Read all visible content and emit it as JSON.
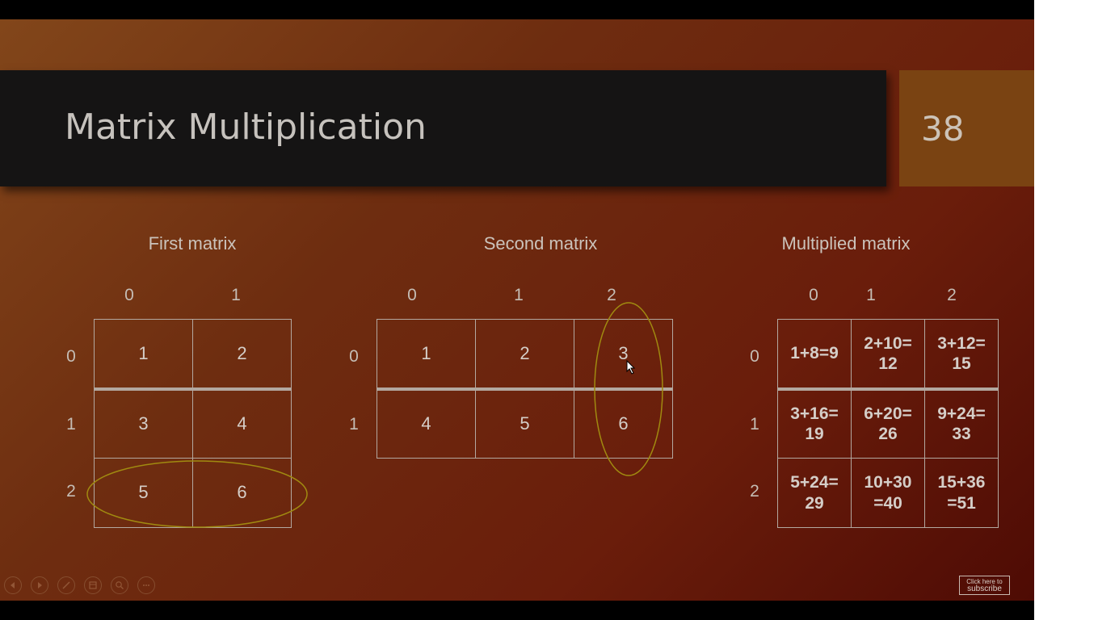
{
  "slide": {
    "title": "Matrix Multiplication",
    "number": "38"
  },
  "first_matrix": {
    "title": "First matrix",
    "col_labels": [
      "0",
      "1"
    ],
    "row_labels": [
      "0",
      "1",
      "2"
    ],
    "cells": [
      [
        "1",
        "2"
      ],
      [
        "3",
        "4"
      ],
      [
        "5",
        "6"
      ]
    ]
  },
  "second_matrix": {
    "title": "Second matrix",
    "col_labels": [
      "0",
      "1",
      "2"
    ],
    "row_labels": [
      "0",
      "1"
    ],
    "cells": [
      [
        "1",
        "2",
        "3"
      ],
      [
        "4",
        "5",
        "6"
      ]
    ]
  },
  "multiplied_matrix": {
    "title": "Multiplied matrix",
    "col_labels": [
      "0",
      "1",
      "2"
    ],
    "row_labels": [
      "0",
      "1",
      "2"
    ],
    "cells": [
      [
        [
          "1+8=9"
        ],
        [
          "2+10=",
          "12"
        ],
        [
          "3+12=",
          "15"
        ]
      ],
      [
        [
          "3+16=",
          "19"
        ],
        [
          "6+20=",
          "26"
        ],
        [
          "9+24=",
          "33"
        ]
      ],
      [
        [
          "5+24=",
          "29"
        ],
        [
          "10+30",
          "=40"
        ],
        [
          "15+36",
          "=51"
        ]
      ]
    ]
  },
  "highlights": {
    "color": "#a08a10",
    "first_matrix_row": "2",
    "second_matrix_column": "2"
  },
  "controls": {
    "icons": [
      "previous-icon",
      "next-icon",
      "pen-icon",
      "slides-icon",
      "zoom-icon",
      "more-icon"
    ]
  },
  "subscribe": {
    "line1": "Click here to",
    "line2": "subscribe"
  }
}
